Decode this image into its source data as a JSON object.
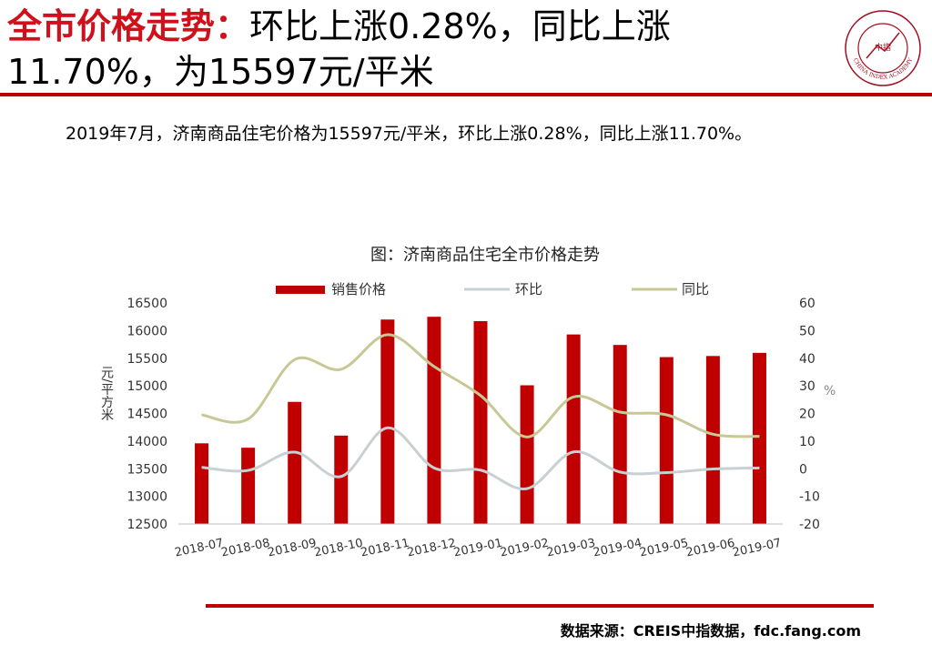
{
  "header": {
    "title_highlight": "全市价格走势：",
    "title_line1_rest": "环比上涨0.28%，同比上涨",
    "title_line2": "11.70%，为15597元/平米",
    "logo_alt_text": "CHINA INDEX ACADEMY",
    "logo_center_text": "中指"
  },
  "summary": "2019年7月，济南商品住宅价格为15597元/平米，环比上涨0.28%，同比上涨11.70%。",
  "footer": {
    "source": "数据来源：CREIS中指数据，fdc.fang.com"
  },
  "colors": {
    "accent": "#c00000",
    "bar": "#c00000",
    "mom_line": "#c8d0d4",
    "yoy_line": "#c8c896"
  },
  "chart_data": {
    "type": "bar+line",
    "title": "图：济南商品住宅全市价格走势",
    "categories": [
      "2018-07",
      "2018-08",
      "2018-09",
      "2018-10",
      "2018-11",
      "2018-12",
      "2019-01",
      "2019-02",
      "2019-03",
      "2019-04",
      "2019-05",
      "2019-06",
      "2019-07"
    ],
    "series": [
      {
        "name": "销售价格",
        "type": "bar",
        "axis": "left",
        "values": [
          13960,
          13880,
          14710,
          14100,
          16200,
          16250,
          16170,
          15010,
          15930,
          15740,
          15520,
          15540,
          15597
        ]
      },
      {
        "name": "环比",
        "type": "line",
        "axis": "right",
        "values": [
          0.5,
          -0.6,
          6,
          -2.8,
          14.8,
          0.3,
          -0.5,
          -7.2,
          6.1,
          -1.2,
          -1.4,
          -0.1,
          0.28
        ]
      },
      {
        "name": "同比",
        "type": "line",
        "axis": "right",
        "values": [
          19.5,
          18,
          39.5,
          36,
          48.5,
          37,
          26.5,
          11.5,
          26,
          20.5,
          19.5,
          12.5,
          11.7
        ]
      }
    ],
    "ylabel_left": "元/平方米",
    "ylabel_right": "%",
    "ylim_left": [
      12500,
      16500
    ],
    "yticks_left": [
      12500,
      13000,
      13500,
      14000,
      14500,
      15000,
      15500,
      16000,
      16500
    ],
    "ylim_right": [
      -20,
      60
    ],
    "yticks_right": [
      -20,
      -10,
      0,
      10,
      20,
      30,
      40,
      50,
      60
    ],
    "legend_position": "top"
  }
}
